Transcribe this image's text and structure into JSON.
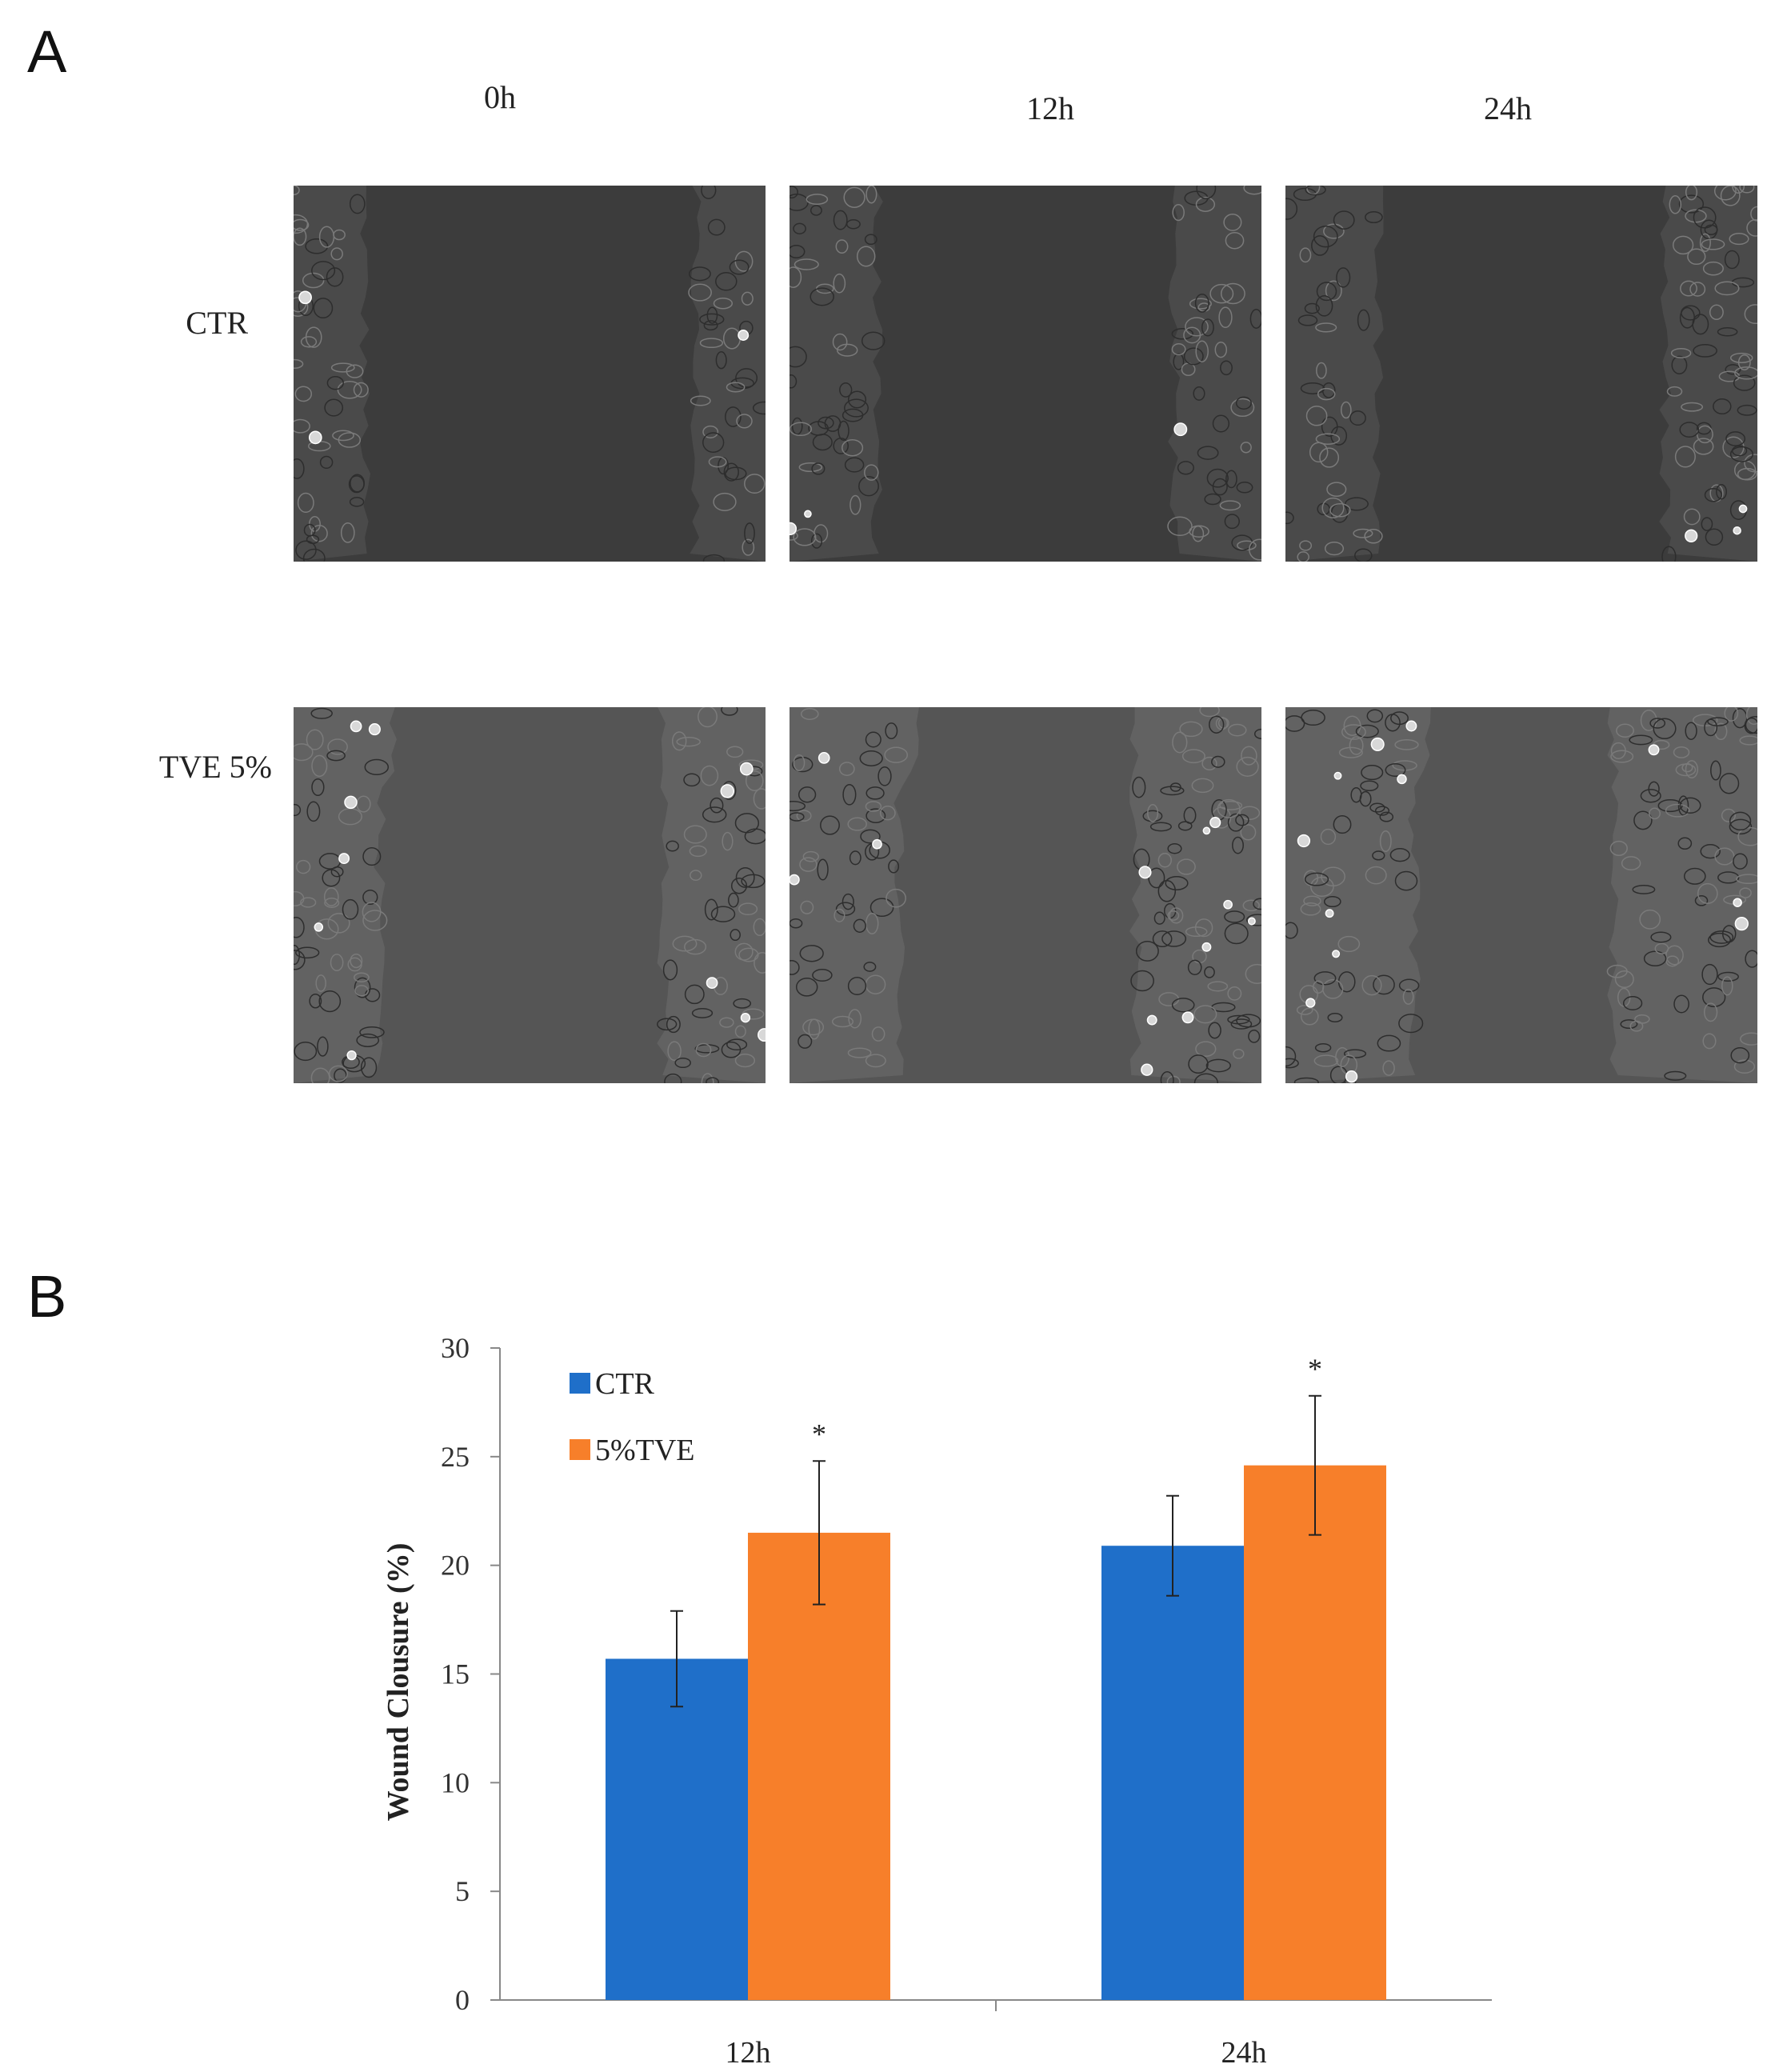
{
  "panel_a": {
    "letter": "A",
    "columns": [
      "0h",
      "12h",
      "24h"
    ],
    "rows": [
      "CTR",
      "TVE 5%"
    ],
    "image_description": "phase-contrast micrographs of scratch wound assay",
    "gap_fraction": [
      [
        0.7,
        0.63,
        0.61
      ],
      [
        0.6,
        0.5,
        0.42
      ]
    ]
  },
  "panel_b": {
    "letter": "B",
    "chart_data": {
      "type": "bar",
      "categories": [
        "12h",
        "24h"
      ],
      "series": [
        {
          "name": "CTR",
          "values": [
            15.7,
            20.9
          ],
          "errors": [
            2.2,
            2.3
          ],
          "color": "#1f6fc9"
        },
        {
          "name": "5%TVE",
          "values": [
            21.5,
            24.6
          ],
          "errors": [
            3.3,
            3.2
          ],
          "color": "#f77f2a"
        }
      ],
      "significance": [
        {
          "category": "12h",
          "series": "5%TVE",
          "mark": "*"
        },
        {
          "category": "24h",
          "series": "5%TVE",
          "mark": "*"
        }
      ],
      "ylabel": "Wound Clousure (%)",
      "xlabel": "",
      "ylim": [
        0,
        30
      ],
      "yticks": [
        0,
        5,
        10,
        15,
        20,
        25,
        30
      ],
      "legend_position": "top-left",
      "grid": false
    }
  }
}
